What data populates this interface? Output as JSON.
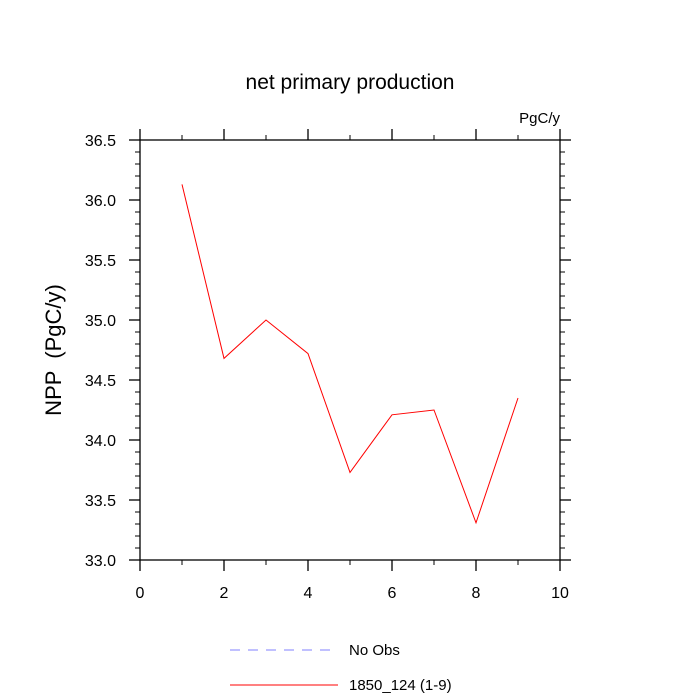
{
  "chart_data": {
    "type": "line",
    "title": "net primary production",
    "units_label": "PgC/y",
    "ylabel": "NPP  (PgC/y)",
    "xlabel": "",
    "xlim": [
      0,
      10
    ],
    "ylim": [
      33.0,
      36.5
    ],
    "xticks": [
      "0",
      "2",
      "4",
      "6",
      "8",
      "10"
    ],
    "yticks": [
      "33.0",
      "33.5",
      "34.0",
      "34.5",
      "35.0",
      "35.5",
      "36.0",
      "36.5"
    ],
    "grid": false,
    "legend_position": "bottom",
    "series": [
      {
        "name": "1850_124 (1-9)",
        "color": "#ff0000",
        "style": "solid",
        "x": [
          1,
          2,
          3,
          4,
          5,
          6,
          7,
          8,
          9
        ],
        "values": [
          36.13,
          34.68,
          35.0,
          34.72,
          33.73,
          34.21,
          34.25,
          33.31,
          34.35
        ]
      }
    ],
    "legend": [
      {
        "label": "No Obs",
        "color": "#8080ff",
        "style": "dashed"
      },
      {
        "label": "1850_124 (1-9)",
        "color": "#ff0000",
        "style": "solid"
      }
    ]
  }
}
